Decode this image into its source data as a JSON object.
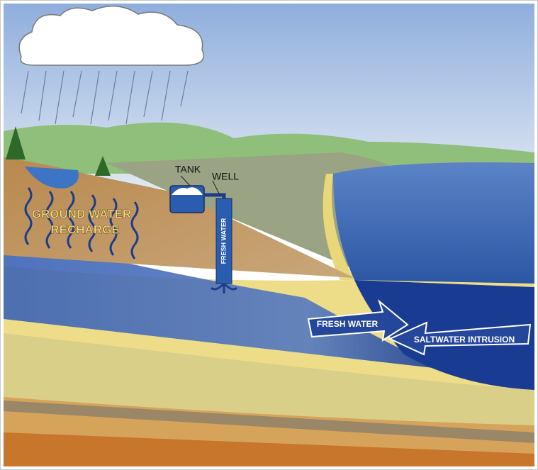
{
  "labels": {
    "tank": "TANK",
    "well": "WELL",
    "recharge_line1": "GROUND WATER",
    "recharge_line2": "RECHARGE",
    "well_pipe": "FRESH WATER",
    "fresh_arrow": "FRESH WATER",
    "saltwater_arrow": "SALTWATER INTRUSION"
  }
}
